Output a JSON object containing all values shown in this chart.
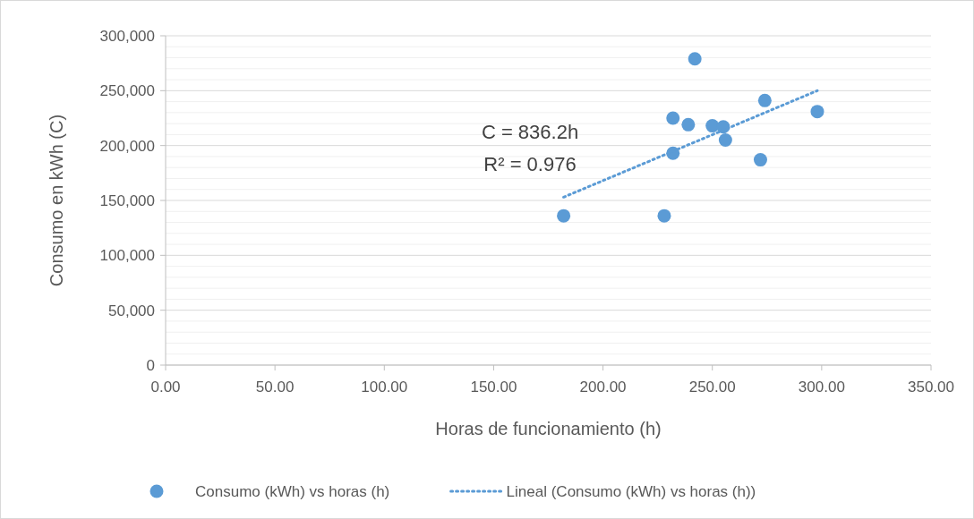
{
  "chart_data": {
    "type": "scatter",
    "xlabel": "Horas de funcionamiento (h)",
    "ylabel": "Consumo en kWh (C)",
    "annotations": [
      "C = 836.2h",
      "R² = 0.976"
    ],
    "xlim": [
      0,
      350
    ],
    "xticks": [
      {
        "value": 0,
        "label": "0.00"
      },
      {
        "value": 50,
        "label": "50.00"
      },
      {
        "value": 100,
        "label": "100.00"
      },
      {
        "value": 150,
        "label": "150.00"
      },
      {
        "value": 200,
        "label": "200.00"
      },
      {
        "value": 250,
        "label": "250.00"
      },
      {
        "value": 300,
        "label": "300.00"
      },
      {
        "value": 350,
        "label": "350.00"
      }
    ],
    "ylim": [
      0,
      300000
    ],
    "yticks": [
      {
        "value": 0,
        "label": "0"
      },
      {
        "value": 50000,
        "label": "50,000"
      },
      {
        "value": 100000,
        "label": "100,000"
      },
      {
        "value": 150000,
        "label": "150,000"
      },
      {
        "value": 200000,
        "label": "200,000"
      },
      {
        "value": 250000,
        "label": "250,000"
      },
      {
        "value": 300000,
        "label": "300,000"
      }
    ],
    "grid": "y",
    "legend": "bottom",
    "marker": "circle",
    "series": [
      {
        "name": "Consumo (kWh) vs horas (h)",
        "color": "#5b9bd5",
        "x": [
          242,
          274,
          298,
          232,
          239,
          250,
          255,
          256,
          232,
          272,
          182,
          228
        ],
        "values": [
          279000,
          241000,
          231000,
          225000,
          219000,
          218000,
          217000,
          205000,
          193000,
          187000,
          136000,
          136000
        ]
      },
      {
        "name": "Lineal (Consumo (kWh) vs horas (h))",
        "type": "line",
        "line_style": "dotted",
        "marker": "none",
        "color": "#5b9bd5",
        "x": [
          182,
          298
        ],
        "values": [
          153000,
          250000
        ]
      }
    ]
  }
}
